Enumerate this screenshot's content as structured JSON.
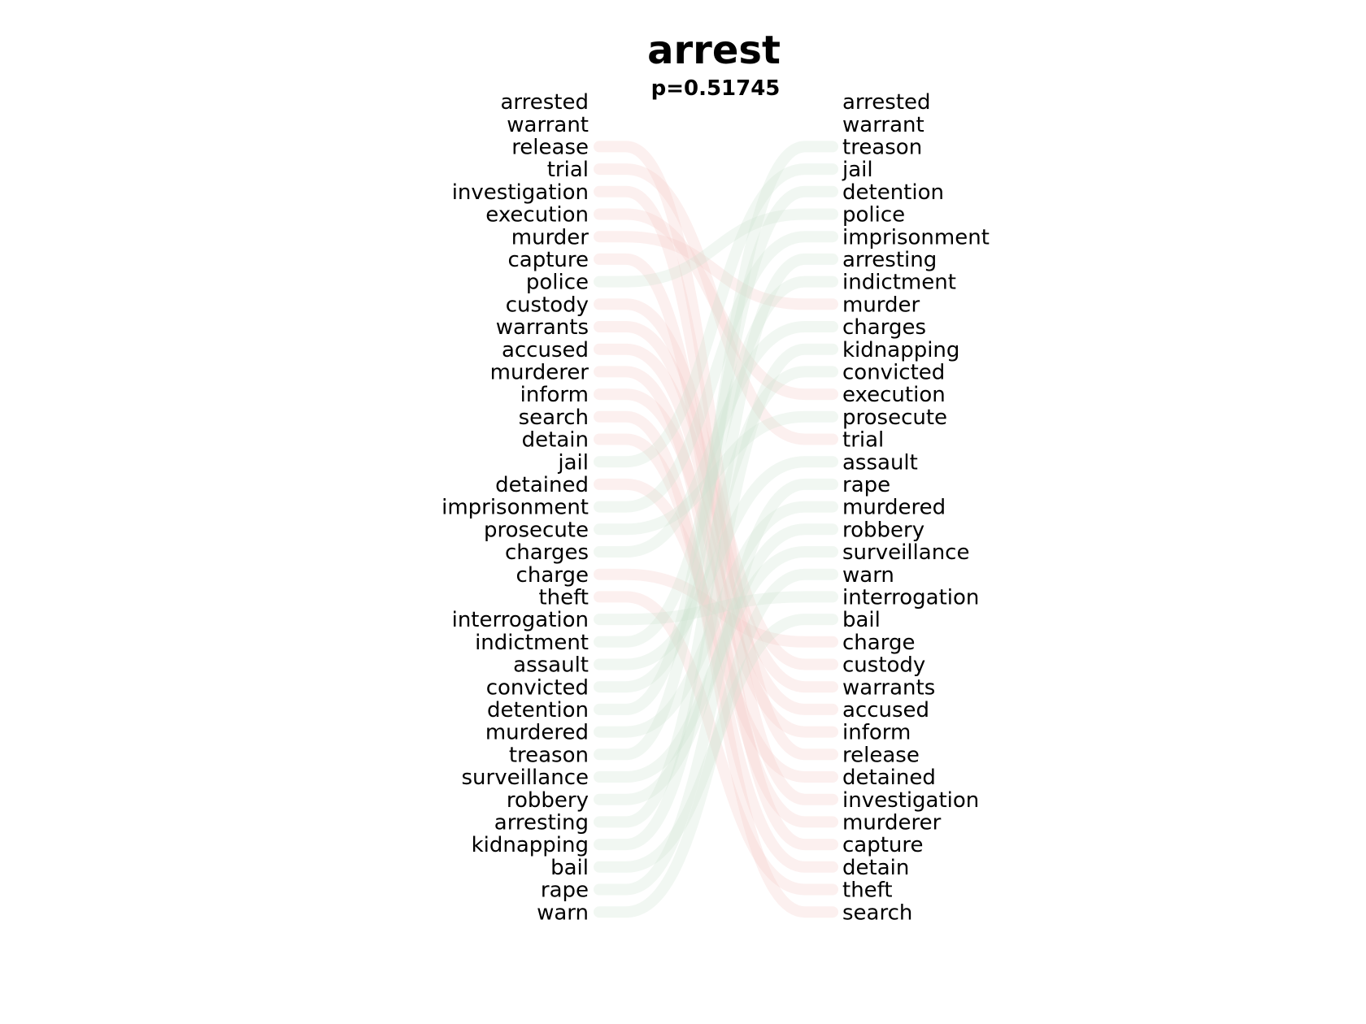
{
  "chart_data": {
    "type": "bump",
    "title": "arrest",
    "subtitle": "p=0.51745",
    "left_ranking": [
      "arrested",
      "warrant",
      "release",
      "trial",
      "investigation",
      "execution",
      "murder",
      "capture",
      "police",
      "custody",
      "warrants",
      "accused",
      "murderer",
      "inform",
      "search",
      "detain",
      "jail",
      "detained",
      "imprisonment",
      "prosecute",
      "charges",
      "charge",
      "theft",
      "interrogation",
      "indictment",
      "assault",
      "convicted",
      "detention",
      "murdered",
      "treason",
      "surveillance",
      "robbery",
      "arresting",
      "kidnapping",
      "bail",
      "rape",
      "warn"
    ],
    "right_ranking": [
      "arrested",
      "warrant",
      "treason",
      "jail",
      "detention",
      "police",
      "imprisonment",
      "arresting",
      "indictment",
      "murder",
      "charges",
      "kidnapping",
      "convicted",
      "execution",
      "prosecute",
      "trial",
      "assault",
      "rape",
      "murdered",
      "robbery",
      "surveillance",
      "warn",
      "interrogation",
      "bail",
      "charge",
      "custody",
      "warrants",
      "accused",
      "inform",
      "release",
      "detained",
      "investigation",
      "murderer",
      "capture",
      "detain",
      "theft",
      "search"
    ],
    "colors": {
      "down": "#f4c9c6",
      "up": "#cde4d2",
      "mid": "#f2e6bd"
    }
  }
}
